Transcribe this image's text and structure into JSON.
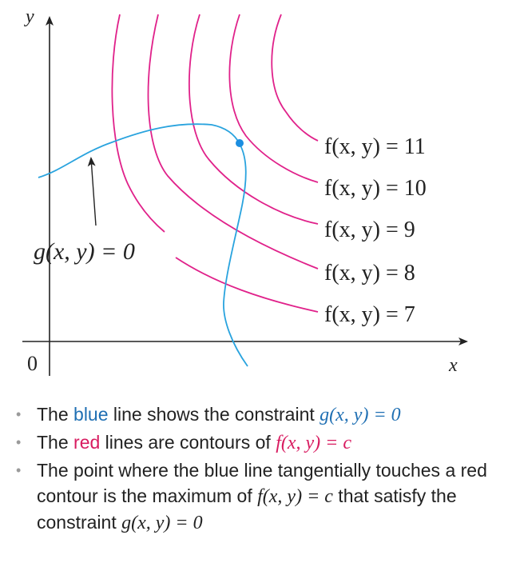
{
  "figure": {
    "y_axis_label": "y",
    "x_axis_label": "x",
    "origin_label": "0",
    "constraint_label": "g(x, y) = 0",
    "contours": [
      {
        "label": "f(x, y) = 11"
      },
      {
        "label": "f(x, y) = 10"
      },
      {
        "label": "f(x, y) = 9"
      },
      {
        "label": "f(x, y) = 8"
      },
      {
        "label": "f(x, y) = 7"
      }
    ],
    "colors": {
      "constraint_curve": "#29a3de",
      "contours": "#e0218a",
      "axes": "#222222",
      "point": "#1c8ee0"
    }
  },
  "bullets": [
    {
      "t1": "The ",
      "word": "blue",
      "t2": " line shows the constraint ",
      "math": "g(x, y) = 0"
    },
    {
      "t1": "The ",
      "word": "red",
      "t2": " lines are contours of ",
      "math": "f(x, y) = c"
    },
    {
      "t1": "The point where the blue line tangentially touches a red contour is the maximum of ",
      "math1": "f(x, y) = c",
      "t2": " that satisfy the constraint ",
      "math2": "g(x, y) = 0"
    }
  ]
}
